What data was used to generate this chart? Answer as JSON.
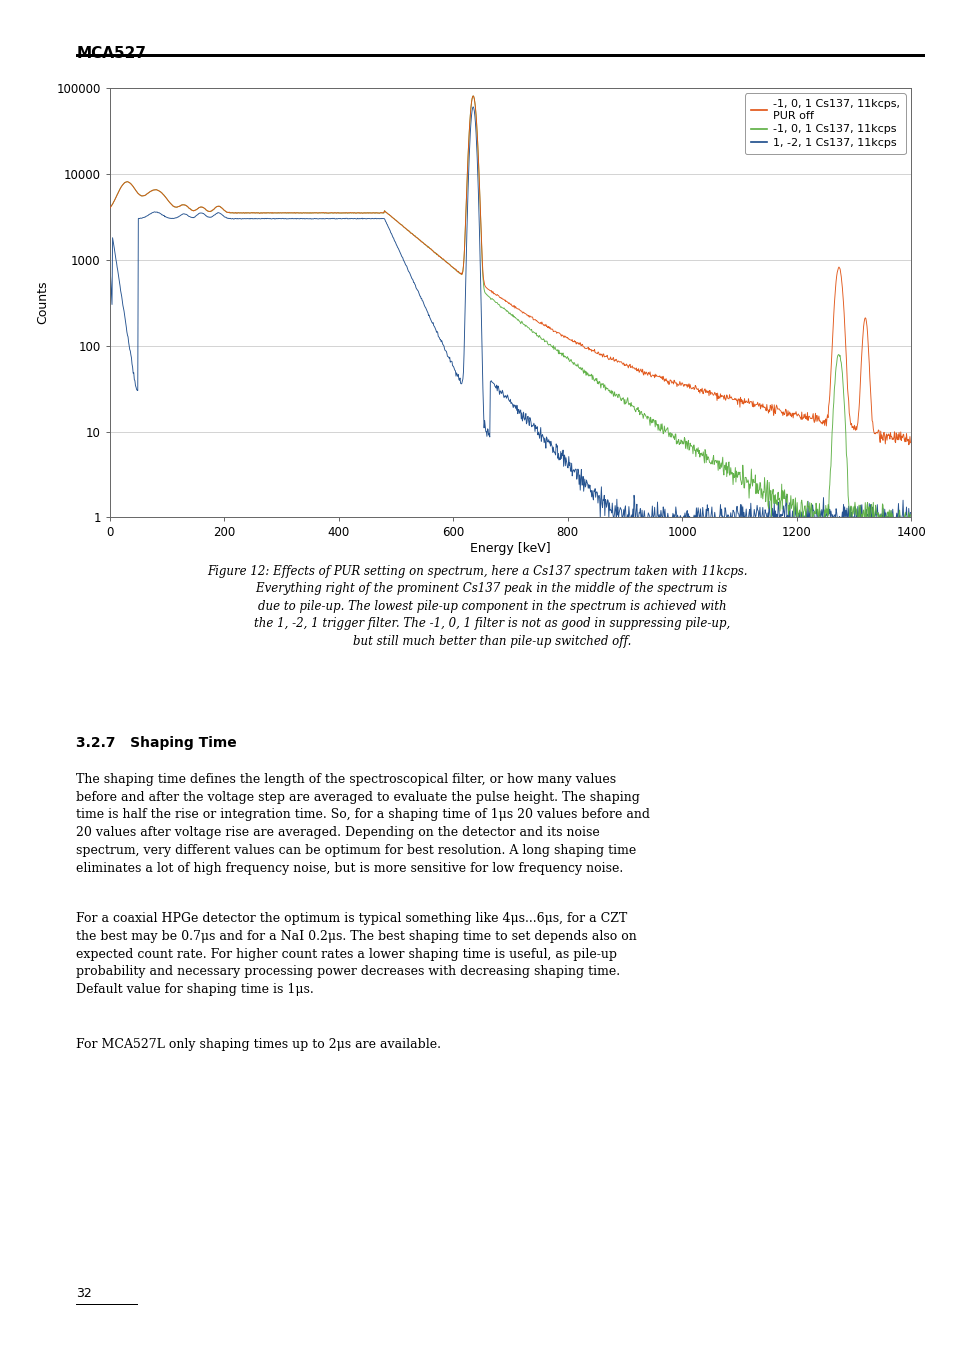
{
  "page_title": "MCA527",
  "xlabel": "Energy [keV]",
  "ylabel": "Counts",
  "legend_labels": [
    "-1, 0, 1 Cs137, 11kcps,\nPUR off",
    "-1, 0, 1 Cs137, 11kcps",
    "1, -2, 1 Cs137, 11kcps"
  ],
  "line_colors": [
    "#E05010",
    "#5AAE40",
    "#1A4A8A"
  ],
  "xlim": [
    0,
    1400
  ],
  "ylim_log": [
    1,
    100000
  ],
  "ytick_labels": [
    "1",
    "10",
    "100",
    "1000",
    "10000",
    "100000"
  ],
  "ytick_vals": [
    1,
    10,
    100,
    1000,
    10000,
    100000
  ],
  "xticks": [
    0,
    200,
    400,
    600,
    800,
    1000,
    1200,
    1400
  ],
  "section_heading": "3.2.7   Shaping Time",
  "body_text_1_lines": [
    "The shaping time defines the length of the spectroscopical filter, or how many values",
    "before and after the voltage step are averaged to evaluate the pulse height. The shaping",
    "time is half the rise or integration time. So, for a shaping time of 1μs 20 values before and",
    "20 values after voltage rise are averaged. Depending on the detector and its noise",
    "spectrum, very different values can be optimum for best resolution. A long shaping time",
    "eliminates a lot of high frequency noise, but is more sensitive for low frequency noise."
  ],
  "body_text_2_lines": [
    "For a coaxial HPGe detector the optimum is typical something like 4μs...6μs, for a CZT",
    "the best may be 0.7μs and for a NaI 0.2μs. The best shaping time to set depends also on",
    "expected count rate. For higher count rates a lower shaping time is useful, as pile-up",
    "probability and necessary processing power decreases with decreasing shaping time.",
    "Default value for shaping time is 1μs."
  ],
  "body_text_3": "For MCA527L only shaping times up to 2μs are available.",
  "caption_lines": [
    "Figure 12: Effects of PUR setting on spectrum, here a Cs137 spectrum taken with 11kcps.",
    "        Everything right of the prominent Cs137 peak in the middle of the spectrum is",
    "        due to pile-up. The lowest pile-up component in the spectrum is achieved with",
    "        the 1, -2, 1 trigger filter. The -1, 0, 1 filter is not as good in suppressing pile-up,",
    "        but still much better than pile-up switched off."
  ],
  "page_number": "32",
  "bg_color": "#ffffff"
}
